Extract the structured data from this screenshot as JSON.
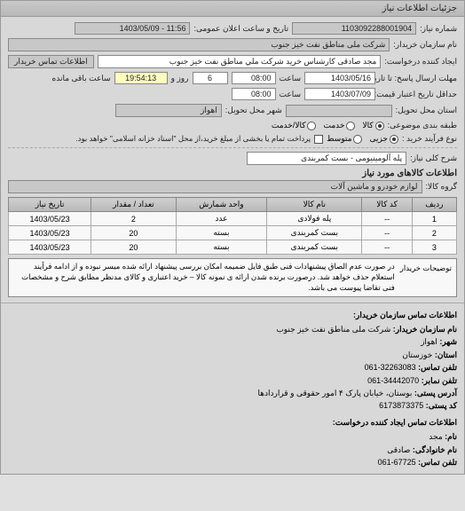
{
  "header": {
    "title": "جزئیات اطلاعات نیاز"
  },
  "top": {
    "request_no_label": "شماره نیاز:",
    "request_no": "1103092288001904",
    "announce_label": "تاریخ و ساعت اعلان عمومی:",
    "announce_value": "11:56 - 1403/05/09",
    "buyer_name_label": "نام سازمان خریدار:",
    "buyer_name": "شرکت ملی مناطق نفت خیز جنوب",
    "requester_label": "ایجاد کننده درخواست:",
    "requester": "مجد صادقی  کارشناس خرید  شرکت ملي مناطق نفت خيز جنوب",
    "buyer_contact_btn": "اطلاعات تماس خریدار",
    "reply_deadline_label": "مهلت ارسال پاسخ: تا تاریخ:",
    "reply_date": "1403/05/16",
    "time_label": "ساعت",
    "reply_time": "08:00",
    "days_remaining": "6",
    "days_remaining_suffix": "روز و",
    "time_remaining": "19:54:13",
    "time_remaining_suffix": "ساعت باقی مانده",
    "validity_label": "حداقل تاریخ اعتبار قیمت: تا تاریخ:",
    "validity_date": "1403/07/09",
    "validity_time": "08:00",
    "delivery_state_label": "استان محل تحویل:",
    "delivery_state": "",
    "delivery_city_label": "شهر محل تحویل:",
    "delivery_city": "اهواز",
    "pricing_class_label": "طبقه بندی موضوعی:",
    "process_type_label": "نوع فرآیند خرید :",
    "payment_note": "پرداخت تمام یا بخشی از مبلغ خرید،از محل \"اسناد خزانه اسلامی\" خواهد بود."
  },
  "radios": {
    "class_options": [
      {
        "label": "کالا",
        "checked": true
      },
      {
        "label": "خدمت",
        "checked": false
      },
      {
        "label": "کالا/خدمت",
        "checked": false
      }
    ],
    "proc_options": [
      {
        "label": "جزیی",
        "checked": true
      },
      {
        "label": "متوسط",
        "checked": false
      }
    ]
  },
  "need": {
    "desc_label": "شرح کلی نیاز:",
    "desc_value": "پله آلومینیومی - بست کمربندی",
    "goods_header": "اطلاعات کالاهای مورد نیاز",
    "group_label": "گروه کالا:",
    "group_value": "لوازم خودرو و ماشین آلات"
  },
  "table": {
    "columns": [
      "ردیف",
      "کد کالا",
      "نام کالا",
      "واحد شمارش",
      "تعداد / مقدار",
      "تاریخ نیاز"
    ],
    "rows": [
      [
        "1",
        "--",
        "پله فولادی",
        "عدد",
        "2",
        "1403/05/23"
      ],
      [
        "2",
        "--",
        "بست کمربندی",
        "بسته",
        "20",
        "1403/05/23"
      ],
      [
        "3",
        "--",
        "بست کمربندی",
        "بسته",
        "20",
        "1403/05/23"
      ]
    ]
  },
  "note": {
    "label": "توضیحات خریدار",
    "text": "در صورت عدم الصاق پیشنهادات فنی طبق فایل ضمیمه امکان بررسی پیشنهاد ارائه شده میسر نبوده و از ادامه فرآیند استعلام حذف خواهد شد. درصورت برنده شدن ارائه ی نمونه کالا – خرید اعتباری و کالای مدنظر مطابق شرح و مشخصات فنی تقاضا پیوست می باشد."
  },
  "contacts": {
    "section_title": "اطلاعات تماس سازمان خریدار:",
    "org_label": "نام سازمان خریدار:",
    "org_value": "شرکت ملی مناطق نفت خیز جنوب",
    "city_label": "شهر:",
    "city_value": "اهواز",
    "province_label": "استان:",
    "province_value": "خوزستان",
    "phone_label": "تلفن تماس:",
    "phone_value": "32263083-061",
    "fax_label": "تلفن نمابر:",
    "fax_value": "34442070-061",
    "postal_addr_label": "آدرس پستی:",
    "postal_addr_value": "بوستان، خیابان پارک ۴ امور حقوقی و قراردادها",
    "postal_code_label": "کد پستی:",
    "postal_code_value": "6173873375",
    "creator_section": "اطلاعات تماس ایجاد کننده درخواست:",
    "name_label": "نام:",
    "name_value": "مجد",
    "family_label": "نام خانوادگی:",
    "family_value": "صادقی",
    "creator_phone_label": "تلفن تماس:",
    "creator_phone_value": "67725-061"
  }
}
